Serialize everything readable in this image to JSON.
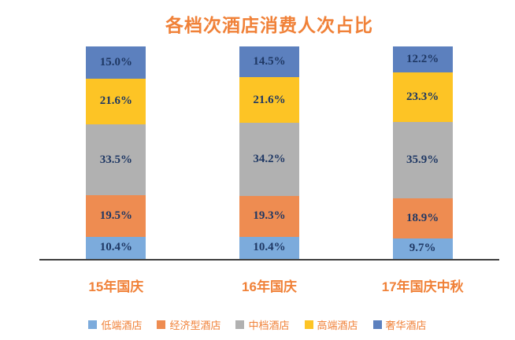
{
  "title": "各档次酒店消费人次占比",
  "styles": {
    "title_color": "#F08138",
    "category_label_color": "#F08138",
    "legend_text_color": "#F08138",
    "data_label_color": "#1F3864",
    "axis_line_color": "#3F3F3F",
    "background": "#FFFFFF"
  },
  "chart_data": {
    "type": "bar",
    "stacked": true,
    "title": "各档次酒店消费人次占比",
    "categories": [
      "15年国庆",
      "16年国庆",
      "17年国庆中秋"
    ],
    "series": [
      {
        "name": "低端酒店",
        "color": "#7CABDC",
        "values": [
          10.4,
          10.4,
          9.7
        ]
      },
      {
        "name": "经济型酒店",
        "color": "#EE8C51",
        "values": [
          19.5,
          19.3,
          18.9
        ]
      },
      {
        "name": "中档酒店",
        "color": "#B1B1B1",
        "values": [
          33.5,
          34.2,
          35.9
        ]
      },
      {
        "name": "高端酒店",
        "color": "#FDC425",
        "values": [
          21.6,
          21.6,
          23.3
        ]
      },
      {
        "name": "奢华酒店",
        "color": "#5C80BE",
        "values": [
          15.0,
          14.5,
          12.2
        ]
      }
    ],
    "value_suffix": "%",
    "label_decimals": 1,
    "ylim": [
      0,
      100
    ],
    "grid": false,
    "legend_position": "bottom",
    "x_axis_line": true
  }
}
